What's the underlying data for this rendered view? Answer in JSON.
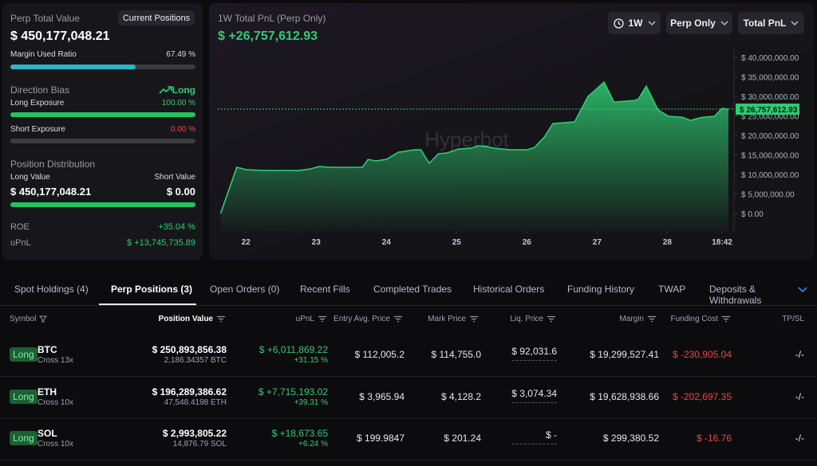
{
  "summary": {
    "title": "Perp Total Value",
    "button": "Current Positions",
    "total": "$ 450,177,048.21",
    "margin_used": {
      "label": "Margin Used Ratio",
      "value": 67.49,
      "text": "67.49 %"
    },
    "direction_bias": {
      "label": "Direction Bias",
      "value": "Long"
    },
    "long_exposure": {
      "label": "Long Exposure",
      "value": 100,
      "text": "100.00 %"
    },
    "short_exposure": {
      "label": "Short Exposure",
      "value": 0,
      "text": "0.00 %"
    },
    "distribution": {
      "title": "Position Distribution",
      "long_label": "Long Value",
      "short_label": "Short Value",
      "long_value": "$ 450,177,048.21",
      "short_value": "$ 0.00"
    },
    "roe": {
      "label": "ROE",
      "value": "+35.04 %"
    },
    "upnl": {
      "label": "uPnL",
      "value": "$ +13,745,735.89"
    }
  },
  "pnl_chart": {
    "type": "area",
    "title": "1W Total PnL (Perp Only)",
    "headline": "$ +26,757,612.93",
    "current_label": "$ 26,757,612.93",
    "watermark": "Hyperbot",
    "color": "#2ecc71",
    "controls": [
      "1W",
      "Perp Only",
      "Total PnL"
    ],
    "x": [
      21.64,
      21.87,
      22.01,
      22.24,
      22.75,
      22.92,
      23.04,
      23.21,
      23.66,
      23.74,
      23.85,
      24.0,
      24.17,
      24.4,
      24.49,
      24.61,
      24.74,
      24.86,
      25.03,
      25.2,
      25.31,
      25.43,
      25.54,
      25.77,
      26.0,
      26.11,
      26.25,
      26.37,
      26.68,
      26.87,
      27.1,
      27.24,
      27.53,
      27.59,
      27.7,
      27.87,
      28.02,
      28.21,
      28.33,
      28.5,
      28.67,
      28.78,
      28.87
    ],
    "values": [
      0,
      11840000,
      11220000,
      11020000,
      11020000,
      11430000,
      12040000,
      11840000,
      11840000,
      13880000,
      13470000,
      13880000,
      15710000,
      16330000,
      16330000,
      12860000,
      15310000,
      15510000,
      16530000,
      16730000,
      17350000,
      17140000,
      16730000,
      16330000,
      16330000,
      16940000,
      19590000,
      23060000,
      23470000,
      30000000,
      33670000,
      28570000,
      28980000,
      29390000,
      32650000,
      26530000,
      24900000,
      24690000,
      23880000,
      24690000,
      24900000,
      26940000,
      26757612.93
    ],
    "xlim": [
      21.6,
      28.95
    ],
    "ylim": [
      -4500000,
      42500000
    ],
    "xticks": [
      {
        "value": 22,
        "label": "22"
      },
      {
        "value": 23,
        "label": "23"
      },
      {
        "value": 24,
        "label": "24"
      },
      {
        "value": 25,
        "label": "25"
      },
      {
        "value": 26,
        "label": "26"
      },
      {
        "value": 27,
        "label": "27"
      },
      {
        "value": 28,
        "label": "28"
      },
      {
        "value": 28.78,
        "label": "18:42"
      }
    ],
    "yticks": [
      {
        "value": 0,
        "label": "$ 0.00"
      },
      {
        "value": 5000000,
        "label": "$ 5,000,000.00"
      },
      {
        "value": 10000000,
        "label": "$ 10,000,000.00"
      },
      {
        "value": 15000000,
        "label": "$ 15,000,000.00"
      },
      {
        "value": 20000000,
        "label": "$ 20,000,000.00"
      },
      {
        "value": 25000000,
        "label": "$ 25,000,000.00"
      },
      {
        "value": 30000000,
        "label": "$ 30,000,000.00"
      },
      {
        "value": 35000000,
        "label": "$ 35,000,000.00"
      },
      {
        "value": 40000000,
        "label": "$ 40,000,000.00"
      }
    ]
  },
  "tabs": [
    "Spot Holdings (4)",
    "Perp Positions (3)",
    "Open Orders (0)",
    "Recent Fills",
    "Completed Trades",
    "Historical Orders",
    "Funding History",
    "TWAP",
    "Deposits & Withdrawals"
  ],
  "table": {
    "columns": [
      "Symbol",
      "Position Value",
      "uPnL",
      "Entry Avg. Price",
      "Mark Price",
      "Liq. Price",
      "Margin",
      "Funding Cost",
      "TP/SL"
    ],
    "rows": [
      {
        "side": "Long",
        "symbol": "BTC",
        "mode": "Cross 13x",
        "position_value": "$ 250,893,856.38",
        "size": "2,186.34357 BTC",
        "upnl": "$ +6,011,869.22",
        "upnl_pct": "+31.15 %",
        "entry": "$ 112,005.2",
        "mark": "$ 114,755.0",
        "liq": "$ 92,031.6",
        "margin": "$ 19,299,527.41",
        "funding": "$ -230,905.04",
        "tpsl": "-/-"
      },
      {
        "side": "Long",
        "symbol": "ETH",
        "mode": "Cross 10x",
        "position_value": "$ 196,289,386.62",
        "size": "47,548.4198 ETH",
        "upnl": "$ +7,715,193.02",
        "upnl_pct": "+39.31 %",
        "entry": "$ 3,965.94",
        "mark": "$ 4,128.2",
        "liq": "$ 3,074.34",
        "margin": "$ 19,628,938.66",
        "funding": "$ -202,697.35",
        "tpsl": "-/-"
      },
      {
        "side": "Long",
        "symbol": "SOL",
        "mode": "Cross 10x",
        "position_value": "$ 2,993,805.22",
        "size": "14,876.79 SOL",
        "upnl": "$ +18,673.65",
        "upnl_pct": "+6.24 %",
        "entry": "$ 199.9847",
        "mark": "$ 201.24",
        "liq": "$ -",
        "margin": "$ 299,380.52",
        "funding": "$ -16.76",
        "tpsl": "-/-"
      }
    ]
  }
}
